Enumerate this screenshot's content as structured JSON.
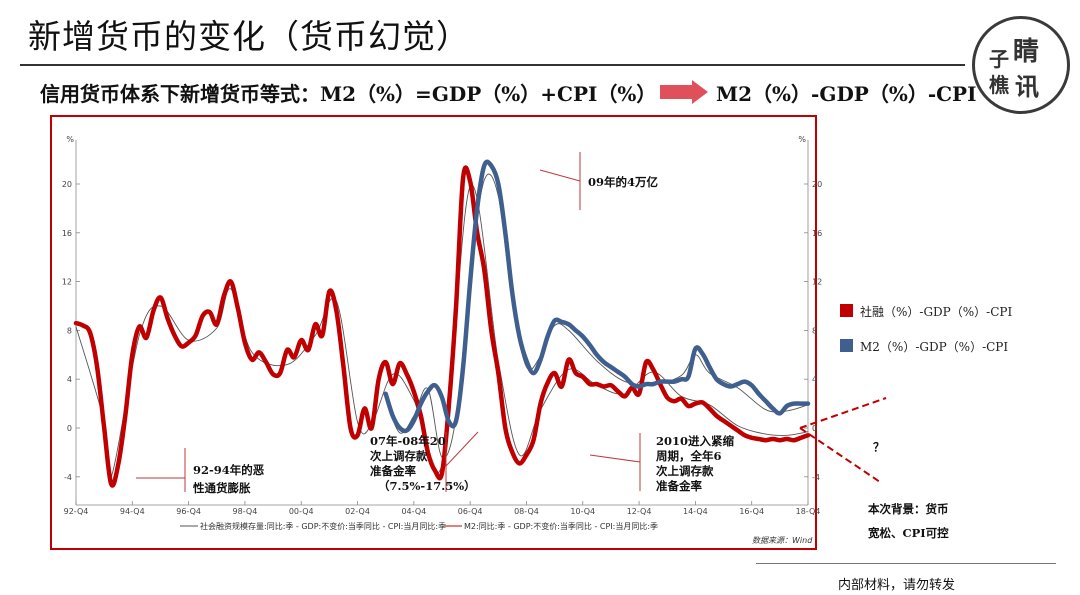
{
  "title": "新增货币的变化（货币幻觉）",
  "equation": {
    "left": "信用货币体系下新增货币等式：M2（%）=GDP（%）+CPI（%）",
    "right": "M2（%）-GDP（%）-CPI"
  },
  "logo": {
    "chars": [
      "子",
      "睛",
      "樵",
      "讯"
    ]
  },
  "colors": {
    "red": "#c00000",
    "blue": "#3f5f8f",
    "thin": "#555555"
  },
  "chart_data": {
    "type": "line",
    "y_unit": "%",
    "ylim": [
      -6,
      22
    ],
    "yticks": [
      "20",
      "16",
      "12",
      "8",
      "4",
      "0",
      "-4"
    ],
    "xticks": [
      "92-Q4",
      "94-Q4",
      "96-Q4",
      "98-Q4",
      "00-Q4",
      "02-Q4",
      "04-Q4",
      "06-Q4",
      "08-Q4",
      "10-Q4",
      "12-Q4",
      "14-Q4",
      "16-Q4",
      "18-Q4"
    ],
    "series": [
      {
        "name": "社融（%）-GDP（%）-CPI",
        "color": "#c00000",
        "x": [
          0,
          1,
          2,
          3,
          4,
          5,
          6,
          7,
          8,
          9,
          10,
          11,
          12,
          13,
          14,
          15,
          16,
          17,
          18,
          19,
          20,
          21,
          22,
          23,
          24,
          25,
          26,
          27,
          28,
          29,
          30,
          31,
          32,
          33,
          34,
          35,
          36,
          37,
          38,
          39,
          40,
          41,
          42,
          43,
          44,
          45,
          46,
          47,
          48,
          49,
          50,
          51,
          52,
          53,
          54,
          55,
          56,
          57,
          58,
          59,
          60,
          61,
          62,
          63,
          64,
          65,
          66,
          67,
          68,
          69,
          70,
          71,
          72,
          73,
          74,
          75,
          76,
          77,
          78,
          79,
          80,
          81,
          82,
          83,
          84,
          85,
          86,
          87,
          88,
          89,
          90,
          91,
          92,
          93,
          94,
          95,
          96,
          97,
          98,
          99,
          100,
          101,
          102,
          103,
          104
        ],
        "values": [
          8.6,
          8.4,
          7.8,
          5.0,
          0.0,
          -4.6,
          -3.0,
          1.0,
          6.0,
          8.3,
          7.4,
          9.6,
          10.7,
          9.0,
          7.6,
          6.7,
          7.0,
          7.6,
          9.2,
          9.5,
          8.5,
          10.8,
          12.0,
          9.8,
          7.0,
          5.6,
          6.2,
          5.4,
          4.4,
          4.5,
          6.4,
          5.8,
          7.2,
          6.4,
          8.5,
          7.6,
          11.2,
          9.6,
          5.0,
          0.0,
          -0.6,
          1.6,
          0.0,
          4.0,
          5.4,
          3.6,
          5.3,
          4.4,
          3.0,
          1.0,
          -2.0,
          -3.5,
          -3.7,
          2.0,
          10.0,
          20.5,
          20.2,
          16.0,
          13.0,
          8.0,
          4.5,
          0.0,
          -2.0,
          -2.9,
          -2.2,
          -1.0,
          2.0,
          3.7,
          4.5,
          3.4,
          5.6,
          4.5,
          4.2,
          3.6,
          3.6,
          3.4,
          3.5,
          3.0,
          2.6,
          3.3,
          2.8,
          5.4,
          4.8,
          3.6,
          2.5,
          2.2,
          2.4,
          1.8,
          2.0,
          2.1,
          1.6,
          1.0,
          0.6,
          0.2,
          -0.2,
          -0.6,
          -0.8,
          -0.9,
          -1.0,
          -0.9,
          -1.0,
          -0.9,
          -1.0,
          -0.8,
          -0.6
        ]
      },
      {
        "name": "M2（%）-GDP（%）-CPI",
        "color": "#3f5f8f",
        "x": [
          44,
          45,
          46,
          47,
          48,
          49,
          50,
          51,
          52,
          53,
          54,
          55,
          56,
          57,
          58,
          59,
          60,
          61,
          62,
          63,
          64,
          65,
          66,
          67,
          68,
          69,
          70,
          71,
          72,
          73,
          74,
          75,
          76,
          77,
          78,
          79,
          80,
          81,
          82,
          83,
          84,
          85,
          86,
          87,
          88,
          89,
          90,
          91,
          92,
          93,
          94,
          95,
          96,
          97,
          98,
          99,
          100,
          101,
          102,
          103,
          104
        ],
        "values": [
          2.8,
          1.0,
          0.0,
          -0.2,
          0.6,
          2.0,
          3.0,
          3.5,
          2.5,
          0.5,
          0.6,
          5.0,
          12.0,
          18.0,
          21.5,
          21.5,
          20.0,
          16.0,
          11.0,
          7.5,
          5.5,
          4.5,
          5.6,
          7.5,
          8.8,
          8.7,
          8.5,
          8.0,
          7.5,
          6.8,
          6.0,
          5.4,
          5.0,
          4.6,
          4.2,
          3.6,
          3.4,
          3.6,
          3.6,
          3.8,
          3.8,
          3.8,
          4.0,
          4.2,
          6.5,
          6.1,
          5.0,
          4.0,
          3.6,
          3.4,
          3.6,
          3.8,
          3.5,
          2.8,
          2.2,
          1.6,
          1.2,
          1.8,
          2.0,
          2.0,
          2.0
        ]
      },
      {
        "name": "社会融资规模存量:同比:季 - GDP:不变价:当季同比 - CPI:当月同比:季",
        "color": "#555555",
        "x": [
          0,
          4,
          5,
          9,
          12,
          16,
          20,
          22,
          25,
          30,
          34,
          37,
          40,
          42,
          45,
          48,
          52,
          56,
          60,
          63,
          66,
          70,
          74,
          78,
          82,
          86,
          90,
          94,
          98,
          101,
          104
        ],
        "values": [
          8.3,
          0.5,
          -4.0,
          7.6,
          10.0,
          7.2,
          8.2,
          11.4,
          6.2,
          5.2,
          7.6,
          10.4,
          0.5,
          0.3,
          4.4,
          2.3,
          -3.0,
          19.8,
          5.5,
          -2.2,
          1.5,
          4.8,
          3.5,
          2.8,
          4.6,
          2.6,
          1.9,
          0.2,
          -0.5,
          -0.6,
          -0.3
        ]
      },
      {
        "name": "M2:同比:季 - GDP:不变价:当季同比 - CPI:当月同比:季",
        "color": "#555555",
        "x": [
          44,
          46,
          48,
          50,
          52,
          54,
          56,
          58,
          60,
          62,
          64,
          66,
          68,
          70,
          74,
          78,
          82,
          86,
          88,
          90,
          94,
          98,
          101,
          104
        ],
        "values": [
          2.4,
          -0.4,
          1.0,
          3.2,
          -2.4,
          0.9,
          12.5,
          20.3,
          19.0,
          10.2,
          5.0,
          5.9,
          8.4,
          8.0,
          5.5,
          3.8,
          3.6,
          4.3,
          6.0,
          4.5,
          3.3,
          1.5,
          1.4,
          1.9
        ]
      }
    ],
    "legend": [
      {
        "label": "社融（%）-GDP（%）-CPI",
        "color": "#c00000"
      },
      {
        "label": "M2（%）-GDP（%）-CPI",
        "color": "#3f5f8f"
      }
    ],
    "bottom_legend": [
      "社会融资规模存量:同比:季 - GDP:不变价:当季同比 - CPI:当月同比:季",
      "M2:同比:季 - GDP:不变价:当季同比 - CPI:当月同比:季"
    ],
    "source": "数据来源：Wind",
    "annotations": {
      "a1": [
        "92-94年的恶",
        "性通货膨胀"
      ],
      "a2": [
        "07年-08年20",
        "次上调存款",
        "准备金率",
        "（7.5%-17.5%）"
      ],
      "a3": "09年的4万亿",
      "a4": [
        "2010进入紧缩",
        "周期，全年6",
        "次上调存款",
        "准备金率"
      ],
      "question": "？",
      "a5": [
        "本次背景：货币",
        "宽松、CPI可控"
      ]
    }
  },
  "footer": "内部材料，请勿转发"
}
